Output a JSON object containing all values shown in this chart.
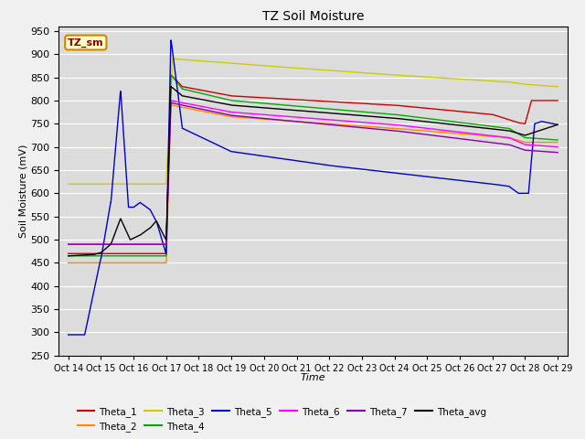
{
  "title": "TZ Soil Moisture",
  "xlabel": "Time",
  "ylabel": "Soil Moisture (mV)",
  "ylim": [
    250,
    960
  ],
  "yticks": [
    250,
    300,
    350,
    400,
    450,
    500,
    550,
    600,
    650,
    700,
    750,
    800,
    850,
    900,
    950
  ],
  "bg_color": "#dcdcdc",
  "fig_color": "#f0f0f0",
  "legend_label": "TZ_sm",
  "series_colors": {
    "Theta_1": "#cc0000",
    "Theta_2": "#ff8800",
    "Theta_3": "#cccc00",
    "Theta_4": "#00aa00",
    "Theta_5": "#0000cc",
    "Theta_6": "#ff00ff",
    "Theta_7": "#8800aa",
    "Theta_avg": "#000000"
  },
  "x_tick_labels": [
    "Oct 14",
    "Oct 15",
    "Oct 16",
    "Oct 17",
    "Oct 18",
    "Oct 19",
    "Oct 20",
    "Oct 21",
    "Oct 22",
    "Oct 23",
    "Oct 24",
    "Oct 25",
    "Oct 26",
    "Oct 27",
    "Oct 28",
    "Oct 29"
  ]
}
